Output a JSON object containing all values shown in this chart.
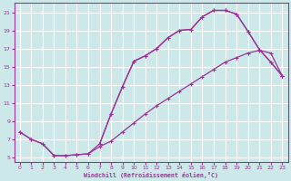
{
  "xlabel": "Windchill (Refroidissement éolien,°C)",
  "bg_color": "#cde8e8",
  "grid_color": "#ffffff",
  "line_color": "#993399",
  "xlim": [
    -0.5,
    23.5
  ],
  "ylim": [
    4.5,
    22.0
  ],
  "xticks": [
    0,
    1,
    2,
    3,
    4,
    5,
    6,
    7,
    8,
    9,
    10,
    11,
    12,
    13,
    14,
    15,
    16,
    17,
    18,
    19,
    20,
    21,
    22,
    23
  ],
  "yticks": [
    5,
    7,
    9,
    11,
    13,
    15,
    17,
    19,
    21
  ],
  "curve1_x": [
    0,
    1,
    2,
    3,
    4,
    5,
    6,
    7,
    8,
    9,
    10,
    11,
    12,
    13,
    14,
    15,
    16,
    17,
    18,
    19,
    20,
    21,
    22,
    23
  ],
  "curve1_y": [
    7.8,
    7.0,
    6.5,
    5.2,
    5.2,
    5.3,
    5.4,
    6.5,
    9.8,
    12.8,
    15.6,
    16.2,
    17.0,
    18.2,
    19.0,
    19.1,
    20.5,
    21.2,
    21.2,
    20.8,
    18.9,
    16.9,
    15.5,
    14.0
  ],
  "curve2_x": [
    0,
    1,
    2,
    3,
    4,
    5,
    6,
    7,
    8,
    9,
    10,
    11,
    12,
    13,
    14,
    15,
    16,
    17,
    18,
    19,
    20,
    21,
    22,
    23
  ],
  "curve2_y": [
    7.8,
    7.0,
    6.5,
    5.2,
    5.2,
    5.3,
    5.4,
    6.2,
    6.8,
    7.8,
    8.8,
    9.8,
    10.7,
    11.5,
    12.3,
    13.1,
    13.9,
    14.7,
    15.5,
    16.0,
    16.5,
    16.8,
    16.5,
    14.0
  ],
  "curve3_x": [
    7,
    8,
    9,
    10,
    11,
    12,
    13,
    14,
    15,
    16,
    17,
    18,
    19,
    20,
    21,
    22,
    23
  ],
  "curve3_y": [
    6.5,
    9.8,
    12.8,
    15.6,
    16.2,
    17.0,
    18.2,
    19.0,
    19.1,
    20.5,
    21.2,
    21.2,
    20.8,
    18.9,
    16.9,
    15.5,
    14.0
  ]
}
